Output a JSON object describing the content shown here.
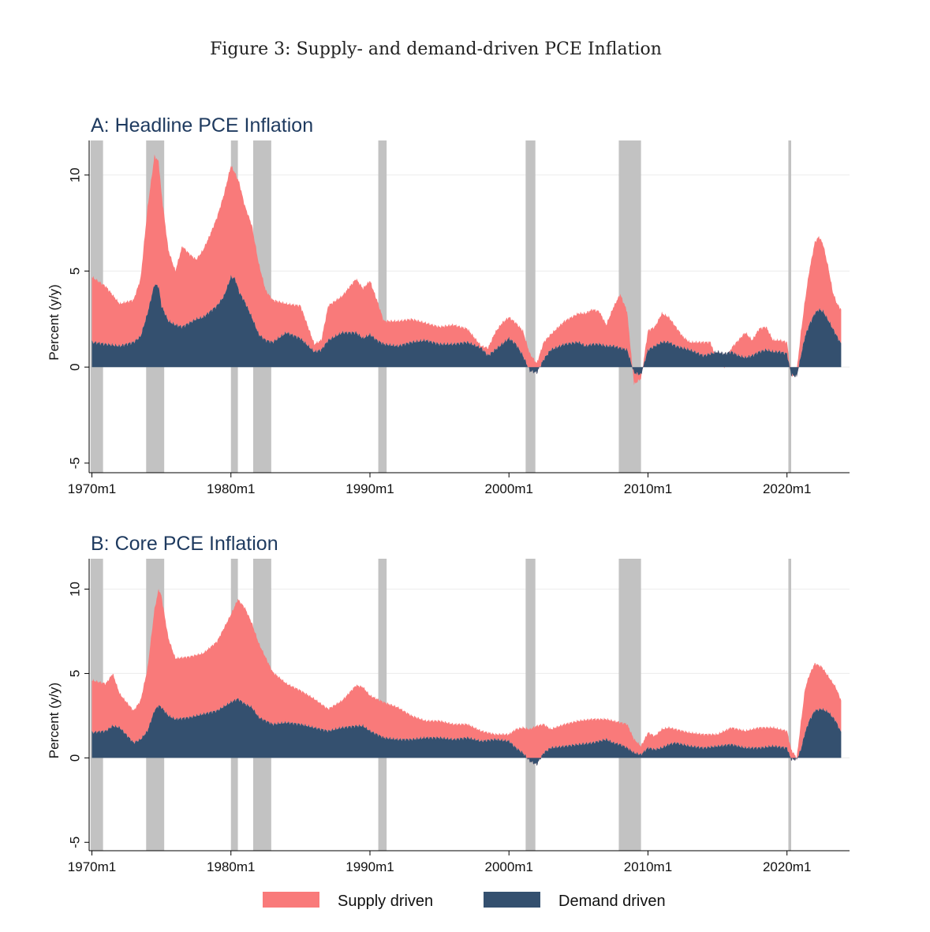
{
  "figure_title": "Figure 3: Supply- and demand-driven PCE Inflation",
  "colors": {
    "supply": "#f97a7a",
    "demand": "#34506f",
    "recession": "#c2c2c2",
    "title": "#1e3a5f",
    "grid": "#ececec"
  },
  "legend": {
    "supply_label": "Supply driven",
    "demand_label": "Demand driven"
  },
  "chart_data": [
    {
      "type": "area",
      "title": "A: Headline PCE Inflation",
      "ylabel": "Percent (y/y)",
      "xlabel": "",
      "ylim": [
        -5.5,
        11.8
      ],
      "xlim": [
        1969.8,
        2024.5
      ],
      "yticks": [
        -5,
        0,
        5,
        10
      ],
      "ytick_labels": [
        "-5",
        "0",
        "5",
        "10"
      ],
      "xticks": [
        1970,
        1980,
        1990,
        2000,
        2010,
        2020
      ],
      "xtick_labels": [
        "1970m1",
        "1980m1",
        "1990m1",
        "2000m1",
        "2010m1",
        "2020m1"
      ],
      "stacked": true,
      "x": [
        1970.0,
        1971.0,
        1972.0,
        1973.0,
        1973.5,
        1974.0,
        1974.5,
        1974.8,
        1975.0,
        1975.5,
        1976.0,
        1976.5,
        1977.0,
        1977.5,
        1978.0,
        1978.5,
        1979.0,
        1979.5,
        1980.0,
        1980.3,
        1980.6,
        1981.0,
        1981.5,
        1982.0,
        1982.5,
        1983.0,
        1984.0,
        1985.0,
        1986.0,
        1986.5,
        1987.0,
        1988.0,
        1989.0,
        1989.5,
        1990.0,
        1990.5,
        1991.0,
        1992.0,
        1993.0,
        1994.0,
        1995.0,
        1996.0,
        1997.0,
        1998.0,
        1998.5,
        1999.0,
        1999.5,
        2000.0,
        2000.5,
        2001.0,
        2001.5,
        2002.0,
        2002.5,
        2003.0,
        2004.0,
        2005.0,
        2005.5,
        2006.0,
        2006.5,
        2007.0,
        2007.5,
        2008.0,
        2008.5,
        2009.0,
        2009.5,
        2010.0,
        2010.5,
        2011.0,
        2011.5,
        2012.0,
        2012.5,
        2013.0,
        2014.0,
        2014.5,
        2015.0,
        2015.5,
        2016.0,
        2016.5,
        2017.0,
        2017.5,
        2018.0,
        2018.5,
        2019.0,
        2019.5,
        2020.0,
        2020.3,
        2020.7,
        2021.0,
        2021.3,
        2021.6,
        2022.0,
        2022.3,
        2022.6,
        2023.0,
        2023.3,
        2023.6,
        2023.9
      ],
      "series": [
        {
          "name": "Demand driven",
          "values": [
            1.3,
            1.2,
            1.1,
            1.3,
            1.6,
            2.8,
            4.3,
            4.2,
            3.2,
            2.4,
            2.2,
            2.1,
            2.3,
            2.5,
            2.6,
            2.9,
            3.2,
            3.7,
            4.7,
            4.6,
            3.9,
            3.4,
            2.6,
            1.7,
            1.4,
            1.3,
            1.8,
            1.5,
            0.8,
            0.9,
            1.4,
            1.8,
            1.8,
            1.5,
            1.7,
            1.4,
            1.2,
            1.1,
            1.3,
            1.4,
            1.2,
            1.2,
            1.3,
            1.0,
            0.6,
            0.9,
            1.2,
            1.5,
            1.2,
            0.6,
            -0.2,
            -0.3,
            0.4,
            0.9,
            1.2,
            1.3,
            1.1,
            1.2,
            1.2,
            1.1,
            1.1,
            1.0,
            0.9,
            -0.3,
            -0.4,
            0.9,
            1.1,
            1.3,
            1.3,
            1.1,
            1.0,
            0.9,
            0.6,
            0.7,
            0.8,
            0.7,
            0.8,
            0.6,
            0.5,
            0.6,
            0.8,
            0.9,
            0.8,
            0.8,
            0.7,
            -0.4,
            -0.5,
            0.6,
            1.6,
            2.2,
            2.8,
            3.0,
            2.9,
            2.4,
            2.0,
            1.6,
            1.2
          ]
        },
        {
          "name": "Supply driven",
          "values": [
            3.4,
            3.0,
            2.2,
            2.2,
            3.0,
            5.5,
            6.7,
            6.5,
            5.9,
            3.7,
            2.8,
            4.2,
            3.6,
            3.1,
            3.5,
            4.0,
            4.6,
            5.3,
            5.8,
            5.5,
            5.7,
            5.0,
            4.8,
            3.7,
            2.6,
            2.2,
            1.5,
            1.7,
            0.4,
            0.5,
            1.8,
            1.9,
            2.8,
            2.6,
            2.8,
            2.1,
            1.2,
            1.3,
            1.2,
            0.9,
            0.9,
            1.0,
            0.7,
            0.1,
            0.4,
            0.9,
            1.1,
            1.1,
            1.1,
            1.3,
            0.9,
            0.5,
            0.9,
            0.8,
            1.2,
            1.5,
            1.7,
            1.8,
            1.7,
            1.1,
            2.0,
            2.8,
            2.0,
            -0.6,
            -0.2,
            1.0,
            1.0,
            1.5,
            1.3,
            1.0,
            0.6,
            0.4,
            0.7,
            0.6,
            -0.6,
            -0.7,
            0.2,
            0.8,
            1.3,
            0.8,
            1.2,
            1.2,
            0.6,
            0.6,
            0.6,
            -0.1,
            0.3,
            1.2,
            1.9,
            2.8,
            3.7,
            3.8,
            3.5,
            2.7,
            1.9,
            1.7,
            1.8
          ]
        }
      ],
      "recessions": [
        [
          1969.9,
          1970.8
        ],
        [
          1973.9,
          1975.2
        ],
        [
          1980.0,
          1980.5
        ],
        [
          1981.6,
          1982.9
        ],
        [
          1990.6,
          1991.2
        ],
        [
          2001.2,
          2001.9
        ],
        [
          2007.9,
          2009.5
        ],
        [
          2020.1,
          2020.3
        ]
      ]
    },
    {
      "type": "area",
      "title": "B: Core PCE Inflation",
      "ylabel": "Percent (y/y)",
      "xlabel": "",
      "ylim": [
        -5.5,
        11.8
      ],
      "xlim": [
        1969.8,
        2024.5
      ],
      "yticks": [
        -5,
        0,
        5,
        10
      ],
      "ytick_labels": [
        "-5",
        "0",
        "5",
        "10"
      ],
      "xticks": [
        1970,
        1980,
        1990,
        2000,
        2010,
        2020
      ],
      "xtick_labels": [
        "1970m1",
        "1980m1",
        "1990m1",
        "2000m1",
        "2010m1",
        "2020m1"
      ],
      "stacked": true,
      "x": [
        1970.0,
        1971.0,
        1971.5,
        1972.0,
        1973.0,
        1973.5,
        1974.0,
        1974.5,
        1974.8,
        1975.0,
        1975.5,
        1976.0,
        1977.0,
        1978.0,
        1979.0,
        1980.0,
        1980.5,
        1981.0,
        1981.5,
        1982.0,
        1983.0,
        1984.0,
        1985.0,
        1986.0,
        1987.0,
        1988.0,
        1989.0,
        1989.5,
        1990.0,
        1991.0,
        1992.0,
        1993.0,
        1994.0,
        1995.0,
        1996.0,
        1997.0,
        1998.0,
        1999.0,
        2000.0,
        2000.5,
        2001.0,
        2001.5,
        2002.0,
        2002.5,
        2003.0,
        2004.0,
        2005.0,
        2006.0,
        2007.0,
        2007.5,
        2008.0,
        2008.5,
        2009.0,
        2009.5,
        2010.0,
        2010.5,
        2011.0,
        2011.5,
        2012.0,
        2013.0,
        2014.0,
        2015.0,
        2016.0,
        2017.0,
        2018.0,
        2019.0,
        2020.0,
        2020.3,
        2020.7,
        2021.0,
        2021.3,
        2021.6,
        2022.0,
        2022.5,
        2023.0,
        2023.5,
        2023.9
      ],
      "series": [
        {
          "name": "Demand driven",
          "values": [
            1.5,
            1.6,
            1.9,
            1.8,
            0.9,
            1.1,
            1.6,
            2.8,
            3.1,
            3.0,
            2.5,
            2.3,
            2.4,
            2.6,
            2.8,
            3.3,
            3.5,
            3.2,
            3.0,
            2.4,
            2.0,
            2.1,
            2.0,
            1.8,
            1.6,
            1.8,
            1.9,
            1.9,
            1.6,
            1.2,
            1.1,
            1.1,
            1.2,
            1.2,
            1.1,
            1.2,
            1.0,
            1.1,
            1.0,
            0.6,
            0.3,
            -0.2,
            -0.4,
            0.3,
            0.6,
            0.7,
            0.8,
            0.9,
            1.1,
            0.9,
            0.8,
            0.6,
            0.3,
            0.2,
            0.6,
            0.5,
            0.6,
            0.8,
            0.9,
            0.7,
            0.6,
            0.7,
            0.8,
            0.6,
            0.6,
            0.7,
            0.6,
            -0.1,
            -0.1,
            0.5,
            1.5,
            2.2,
            2.8,
            2.9,
            2.7,
            2.2,
            1.5
          ]
        },
        {
          "name": "Supply driven",
          "values": [
            3.1,
            2.8,
            3.1,
            2.0,
            1.9,
            2.3,
            3.7,
            6.0,
            6.9,
            6.6,
            4.6,
            3.6,
            3.6,
            3.6,
            4.1,
            5.2,
            5.9,
            5.7,
            5.0,
            4.4,
            3.1,
            2.3,
            2.0,
            1.7,
            1.3,
            1.6,
            2.4,
            2.3,
            2.1,
            2.1,
            1.9,
            1.4,
            1.0,
            1.0,
            0.9,
            0.8,
            0.6,
            0.3,
            0.4,
            1.1,
            1.5,
            1.9,
            2.3,
            1.7,
            1.1,
            1.3,
            1.4,
            1.4,
            1.2,
            1.3,
            1.3,
            1.4,
            0.8,
            0.5,
            0.9,
            0.8,
            1.1,
            1.0,
            0.8,
            0.8,
            0.8,
            0.7,
            1.0,
            1.0,
            1.2,
            1.1,
            1.0,
            0.6,
            0.1,
            1.6,
            2.6,
            2.7,
            2.8,
            2.5,
            2.1,
            2.0,
            1.9
          ]
        }
      ],
      "recessions": [
        [
          1969.9,
          1970.8
        ],
        [
          1973.9,
          1975.2
        ],
        [
          1980.0,
          1980.5
        ],
        [
          1981.6,
          1982.9
        ],
        [
          1990.6,
          1991.2
        ],
        [
          2001.2,
          2001.9
        ],
        [
          2007.9,
          2009.5
        ],
        [
          2020.1,
          2020.3
        ]
      ]
    }
  ]
}
